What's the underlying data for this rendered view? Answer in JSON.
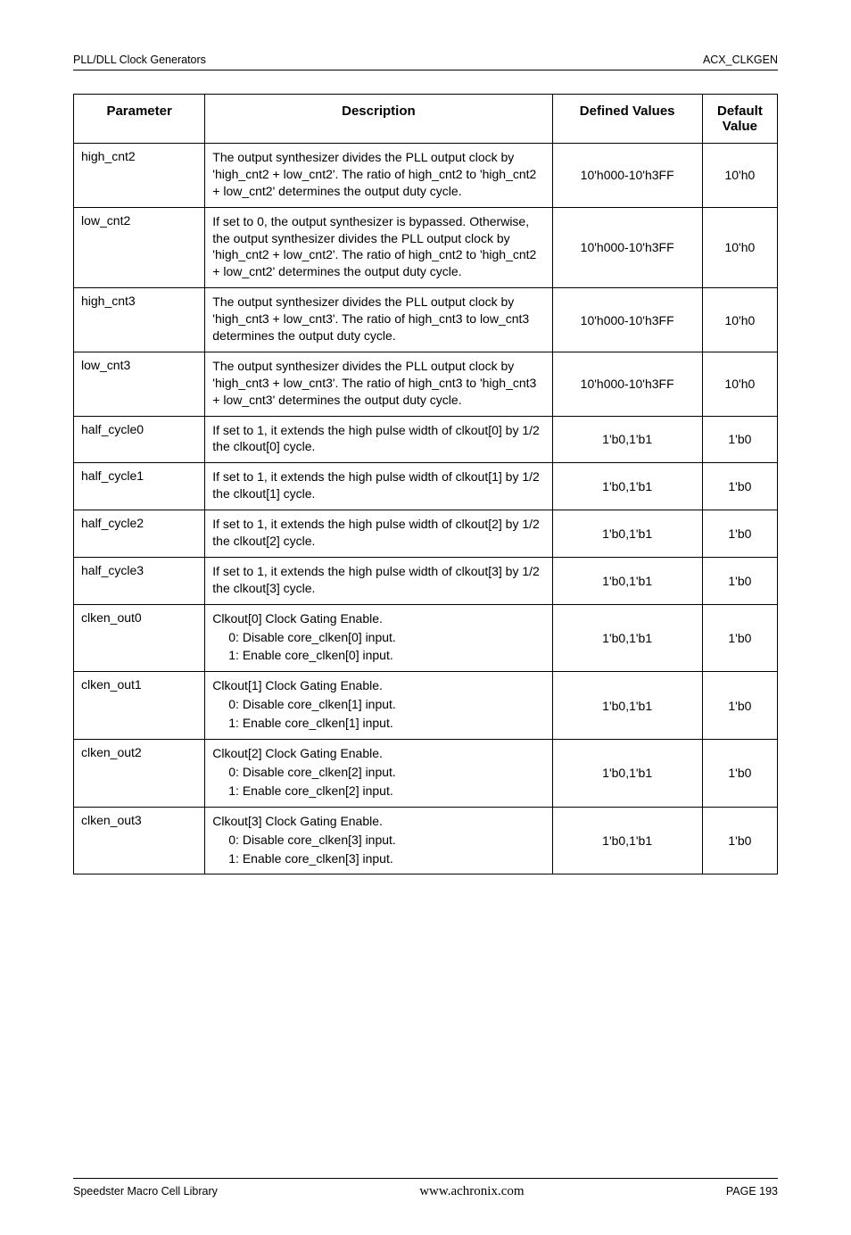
{
  "header": {
    "left": "PLL/DLL Clock Generators",
    "right": "ACX_CLKGEN"
  },
  "table": {
    "columns": [
      "Parameter",
      "Description",
      "Defined Values",
      "Default Value"
    ],
    "rows": [
      {
        "param": "high_cnt2",
        "desc": [
          "The output synthesizer divides the PLL output clock by 'high_cnt2 + low_cnt2'. The ratio of high_cnt2 to 'high_cnt2 + low_cnt2' determines the output duty cycle."
        ],
        "defined": "10'h000-10'h3FF",
        "default": "10'h0"
      },
      {
        "param": "low_cnt2",
        "desc": [
          "If set to 0, the output synthesizer is bypassed. Otherwise, the output synthesizer divides the PLL output clock by 'high_cnt2 + low_cnt2'. The ratio of high_cnt2 to 'high_cnt2 + low_cnt2' determines the output duty cycle."
        ],
        "defined": "10'h000-10'h3FF",
        "default": "10'h0"
      },
      {
        "param": "high_cnt3",
        "desc": [
          "The output synthesizer divides the PLL output clock by 'high_cnt3 + low_cnt3'. The ratio of high_cnt3 to low_cnt3 determines the output duty cycle."
        ],
        "defined": "10'h000-10'h3FF",
        "default": "10'h0"
      },
      {
        "param": "low_cnt3",
        "desc": [
          "The output synthesizer divides the PLL output clock by 'high_cnt3 + low_cnt3'. The ratio of high_cnt3 to 'high_cnt3 + low_cnt3' determines the output duty cycle."
        ],
        "defined": "10'h000-10'h3FF",
        "default": "10'h0"
      },
      {
        "param": "half_cycle0",
        "desc": [
          "If set to 1, it extends the high pulse width of clkout[0] by 1/2 the clkout[0] cycle."
        ],
        "defined": "1'b0,1'b1",
        "default": "1'b0"
      },
      {
        "param": "half_cycle1",
        "desc": [
          "If set to 1, it extends the high pulse width of clkout[1] by 1/2 the clkout[1] cycle."
        ],
        "defined": "1'b0,1'b1",
        "default": "1'b0"
      },
      {
        "param": "half_cycle2",
        "desc": [
          "If set to 1, it extends the high pulse width of clkout[2] by 1/2 the clkout[2] cycle."
        ],
        "defined": "1'b0,1'b1",
        "default": "1'b0"
      },
      {
        "param": "half_cycle3",
        "desc": [
          "If set to 1, it extends the high pulse width of clkout[3] by 1/2 the clkout[3] cycle."
        ],
        "defined": "1'b0,1'b1",
        "default": "1'b0"
      },
      {
        "param": "clken_out0",
        "desc": [
          "Clkout[0] Clock Gating Enable.",
          "0: Disable core_clken[0] input.",
          "1: Enable core_clken[0] input."
        ],
        "indent": [
          false,
          true,
          true
        ],
        "defined": "1'b0,1'b1",
        "default": "1'b0"
      },
      {
        "param": "clken_out1",
        "desc": [
          "Clkout[1] Clock Gating Enable.",
          "0: Disable core_clken[1] input.",
          "1: Enable core_clken[1] input."
        ],
        "indent": [
          false,
          true,
          true
        ],
        "defined": "1'b0,1'b1",
        "default": "1'b0"
      },
      {
        "param": "clken_out2",
        "desc": [
          "Clkout[2] Clock Gating Enable.",
          "0: Disable core_clken[2] input.",
          "1: Enable core_clken[2] input."
        ],
        "indent": [
          false,
          true,
          true
        ],
        "defined": "1'b0,1'b1",
        "default": "1'b0"
      },
      {
        "param": "clken_out3",
        "desc": [
          "Clkout[3] Clock Gating Enable.",
          "0: Disable core_clken[3] input.",
          "1: Enable core_clken[3] input."
        ],
        "indent": [
          false,
          true,
          true
        ],
        "defined": "1'b0,1'b1",
        "default": "1'b0"
      }
    ]
  },
  "footer": {
    "left": "Speedster Macro Cell Library",
    "center": "www.achronix.com",
    "right": "PAGE 193"
  }
}
